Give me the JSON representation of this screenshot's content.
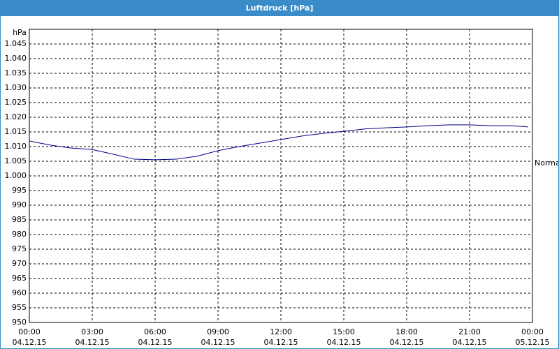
{
  "chart_data": {
    "type": "line",
    "title": "Luftdruck [hPa]",
    "y_unit": "hPa",
    "x": [
      0,
      1,
      2,
      3,
      4,
      5,
      6,
      7,
      8,
      9,
      10,
      11,
      12,
      13,
      14,
      15,
      16,
      17,
      18,
      19,
      20,
      21,
      22,
      23,
      23.8
    ],
    "series": [
      {
        "name": "Luftdruck",
        "color": "#00008b",
        "values": [
          1011.9,
          1010.5,
          1009.5,
          1009,
          1007.4,
          1005.7,
          1005.5,
          1005.7,
          1006.7,
          1008.6,
          1010,
          1011.2,
          1012.4,
          1013.6,
          1014.5,
          1015.2,
          1016,
          1016.4,
          1016.7,
          1017.1,
          1017.4,
          1017.4,
          1017.1,
          1017.1,
          1016.7
        ]
      }
    ],
    "annotation": {
      "text": "Normal",
      "value": 1005
    },
    "xlim": [
      0,
      24
    ],
    "xticks": [
      {
        "value": 0,
        "label": "00:00",
        "date": "04.12.15"
      },
      {
        "value": 3,
        "label": "03:00",
        "date": "04.12.15"
      },
      {
        "value": 6,
        "label": "06:00",
        "date": "04.12.15"
      },
      {
        "value": 9,
        "label": "09:00",
        "date": "04.12.15"
      },
      {
        "value": 12,
        "label": "12:00",
        "date": "04.12.15"
      },
      {
        "value": 15,
        "label": "15:00",
        "date": "04.12.15"
      },
      {
        "value": 18,
        "label": "18:00",
        "date": "04.12.15"
      },
      {
        "value": 21,
        "label": "21:00",
        "date": "04.12.15"
      },
      {
        "value": 24,
        "label": "00:00",
        "date": "05.12.15"
      }
    ],
    "ylim": [
      950,
      1050
    ],
    "yticks": [
      950,
      955,
      960,
      965,
      970,
      975,
      980,
      985,
      990,
      995,
      {
        "value": 1000,
        "label": "1.000"
      },
      {
        "value": 1005,
        "label": "1.005"
      },
      {
        "value": 1010,
        "label": "1.010"
      },
      {
        "value": 1015,
        "label": "1.015"
      },
      {
        "value": 1020,
        "label": "1.020"
      },
      {
        "value": 1025,
        "label": "1.025"
      },
      {
        "value": 1030,
        "label": "1.030"
      },
      {
        "value": 1035,
        "label": "1.035"
      },
      {
        "value": 1040,
        "label": "1.040"
      },
      {
        "value": 1045,
        "label": "1.045"
      }
    ],
    "grid": true
  }
}
